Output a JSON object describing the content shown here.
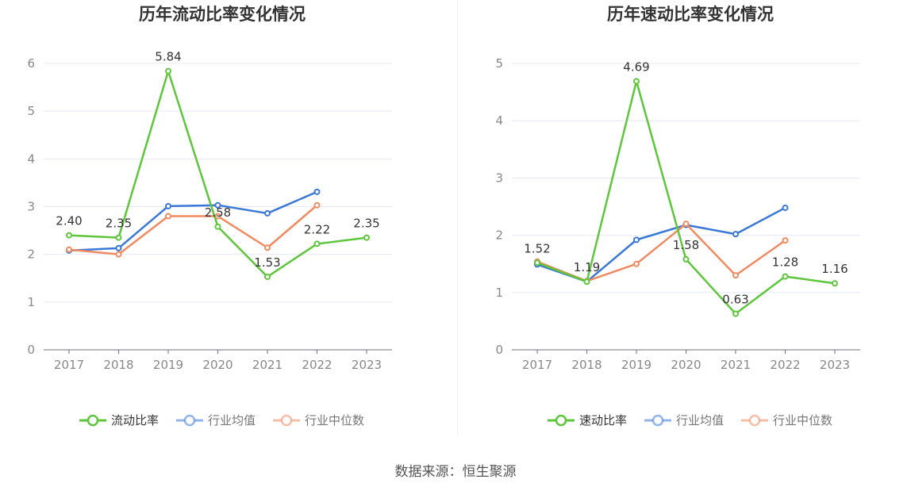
{
  "charts": [
    {
      "title": "历年流动比率变化情况",
      "chart_data": {
        "type": "line",
        "categories": [
          "2017",
          "2018",
          "2019",
          "2020",
          "2021",
          "2022",
          "2023"
        ],
        "ylim": [
          0,
          6
        ],
        "yticks": [
          "0",
          "1",
          "2",
          "3",
          "4",
          "5",
          "6"
        ],
        "grid": true,
        "legend_position": "bottom",
        "series": [
          {
            "name": "流动比率",
            "color": "#5dc63a",
            "values": [
              2.4,
              2.35,
              5.84,
              2.58,
              1.53,
              2.22,
              2.35
            ],
            "labels": [
              "2.40",
              "2.35",
              "5.84",
              "2.58",
              "1.53",
              "2.22",
              "2.35"
            ]
          },
          {
            "name": "行业均值",
            "color": "#3a78d8",
            "values": [
              2.08,
              2.13,
              3.01,
              3.03,
              2.86,
              3.31,
              null
            ]
          },
          {
            "name": "行业中位数",
            "color": "#f08a60",
            "values": [
              2.1,
              2.0,
              2.8,
              2.8,
              2.14,
              3.03,
              null
            ]
          }
        ]
      }
    },
    {
      "title": "历年速动比率变化情况",
      "chart_data": {
        "type": "line",
        "categories": [
          "2017",
          "2018",
          "2019",
          "2020",
          "2021",
          "2022",
          "2023"
        ],
        "ylim": [
          0,
          5
        ],
        "yticks": [
          "0",
          "1",
          "2",
          "3",
          "4",
          "5"
        ],
        "grid": true,
        "legend_position": "bottom",
        "series": [
          {
            "name": "速动比率",
            "color": "#5dc63a",
            "values": [
              1.52,
              1.19,
              4.69,
              1.58,
              0.63,
              1.28,
              1.16
            ],
            "labels": [
              "1.52",
              "1.19",
              "4.69",
              "1.58",
              "0.63",
              "1.28",
              "1.16"
            ]
          },
          {
            "name": "行业均值",
            "color": "#3a78d8",
            "values": [
              1.49,
              1.19,
              1.92,
              2.18,
              2.02,
              2.48,
              null
            ]
          },
          {
            "name": "行业中位数",
            "color": "#f08a60",
            "values": [
              1.54,
              1.2,
              1.5,
              2.2,
              1.3,
              1.91,
              null
            ]
          }
        ]
      }
    }
  ],
  "source": "数据来源：恒生聚源"
}
